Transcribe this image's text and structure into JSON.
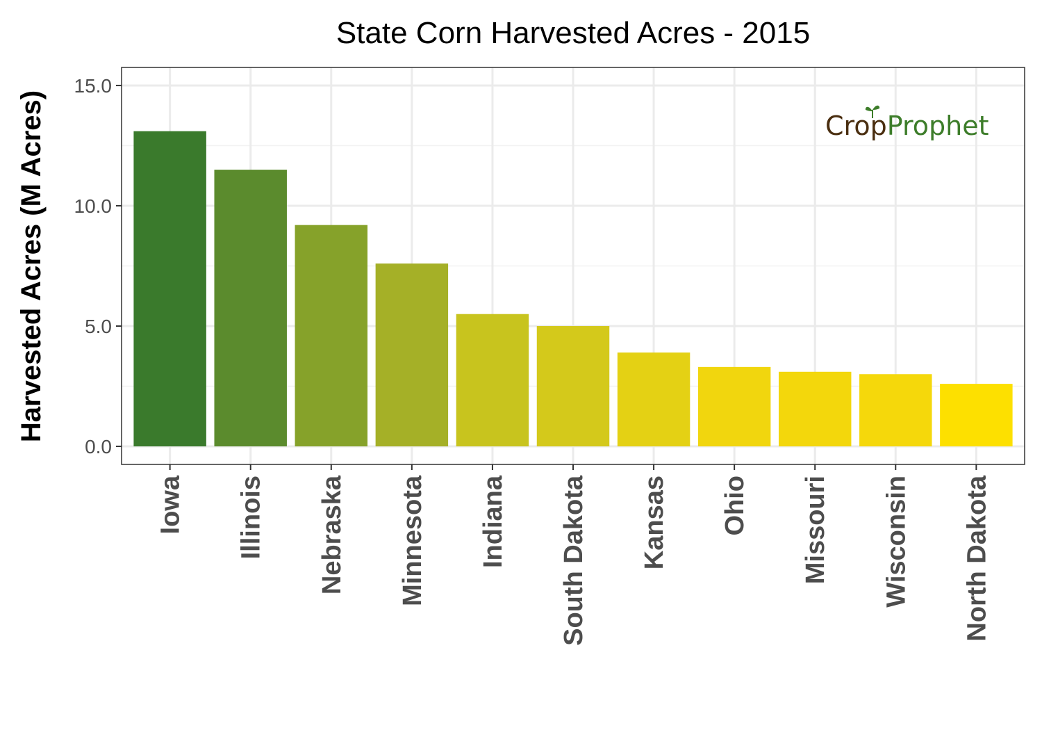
{
  "chart_data": {
    "type": "bar",
    "title": "State Corn Harvested Acres - 2015",
    "xlabel": "",
    "ylabel": "Harvested Acres (M Acres)",
    "ylim": [
      -0.75,
      15.75
    ],
    "yticks": [
      0,
      5,
      10,
      15
    ],
    "ytick_labels": [
      "0.0",
      "5.0",
      "10.0",
      "15.0"
    ],
    "grid": true,
    "categories": [
      "Iowa",
      "Illinois",
      "Nebraska",
      "Minnesota",
      "Indiana",
      "South Dakota",
      "Kansas",
      "Ohio",
      "Missouri",
      "Wisconsin",
      "North Dakota"
    ],
    "values": [
      13.1,
      11.5,
      9.2,
      7.6,
      5.5,
      5.0,
      3.9,
      3.3,
      3.1,
      3.0,
      2.6
    ],
    "colors": [
      "#3a7a2c",
      "#5b8b2d",
      "#86a22a",
      "#a5b027",
      "#c8c41e",
      "#d4c91b",
      "#e4d114",
      "#f1d60e",
      "#f3d70c",
      "#f5d80b",
      "#fde000"
    ]
  },
  "logo": {
    "part1": "Cr",
    "part2": "p",
    "part3": "Prophet"
  }
}
